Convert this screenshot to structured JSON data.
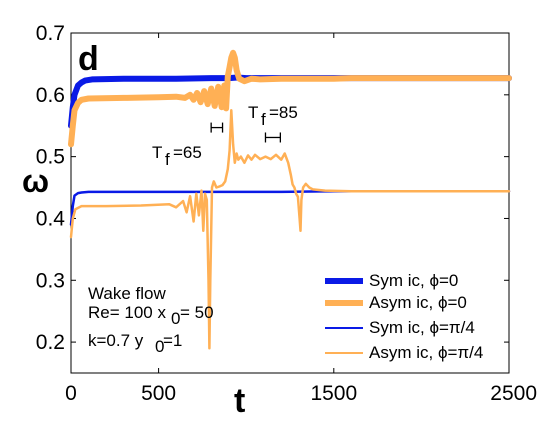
{
  "chart_data": {
    "type": "line",
    "panel_label": "d",
    "xlabel": "t",
    "ylabel": "ω",
    "xlim": [
      0,
      2500
    ],
    "ylim": [
      0.15,
      0.7
    ],
    "x_ticks": [
      0,
      500,
      1500,
      2500
    ],
    "y_ticks": [
      0.2,
      0.3,
      0.4,
      0.5,
      0.6,
      0.7
    ],
    "x_tick_labels": [
      "0",
      "500",
      "1500",
      "2500"
    ],
    "y_tick_labels": [
      "0.2",
      "0.3",
      "0.4",
      "0.5",
      "0.6",
      "0.7"
    ],
    "grid": false,
    "legend_position": "bottom-right",
    "annotation_lines": [
      "Wake flow",
      "Re= 100 x",
      "= 50",
      "k=0.7 y",
      "=1"
    ],
    "tf_labels": [
      {
        "main": "T",
        "sub": "f",
        "value": "=65"
      },
      {
        "main": "T",
        "sub": "f",
        "value": "=85"
      }
    ],
    "tf_bars": [
      {
        "x": [
          800,
          865
        ],
        "y": 0.547
      },
      {
        "x": [
          1110,
          1195
        ],
        "y": 0.531
      }
    ],
    "legend_prefix": "ϕ",
    "series": [
      {
        "name": "Sym ic, ",
        "phase": "=0",
        "color": "#0a1ae6",
        "weight": "thick",
        "points": [
          [
            0,
            0.55
          ],
          [
            10,
            0.58
          ],
          [
            20,
            0.6
          ],
          [
            40,
            0.615
          ],
          [
            60,
            0.62
          ],
          [
            80,
            0.623
          ],
          [
            120,
            0.625
          ],
          [
            300,
            0.626
          ],
          [
            600,
            0.626
          ],
          [
            800,
            0.627
          ],
          [
            900,
            0.627
          ],
          [
            950,
            0.628
          ],
          [
            1000,
            0.627
          ],
          [
            1100,
            0.627
          ],
          [
            1300,
            0.627
          ],
          [
            1500,
            0.627
          ],
          [
            1600,
            0.627
          ],
          [
            2500,
            0.627
          ]
        ]
      },
      {
        "name": "Asym ic, ",
        "phase": "=0",
        "color": "#ffb055",
        "weight": "thick",
        "points": [
          [
            0,
            0.52
          ],
          [
            10,
            0.55
          ],
          [
            20,
            0.575
          ],
          [
            40,
            0.587
          ],
          [
            60,
            0.592
          ],
          [
            100,
            0.594
          ],
          [
            300,
            0.595
          ],
          [
            500,
            0.596
          ],
          [
            600,
            0.597
          ],
          [
            650,
            0.595
          ],
          [
            680,
            0.6
          ],
          [
            700,
            0.592
          ],
          [
            720,
            0.603
          ],
          [
            740,
            0.588
          ],
          [
            760,
            0.606
          ],
          [
            780,
            0.585
          ],
          [
            800,
            0.61
          ],
          [
            820,
            0.582
          ],
          [
            840,
            0.613
          ],
          [
            860,
            0.58
          ],
          [
            875,
            0.615
          ],
          [
            885,
            0.578
          ],
          [
            895,
            0.63
          ],
          [
            905,
            0.645
          ],
          [
            915,
            0.66
          ],
          [
            925,
            0.668
          ],
          [
            935,
            0.66
          ],
          [
            945,
            0.64
          ],
          [
            960,
            0.626
          ],
          [
            990,
            0.622
          ],
          [
            1030,
            0.626
          ],
          [
            1080,
            0.625
          ],
          [
            1200,
            0.626
          ],
          [
            1500,
            0.626
          ],
          [
            1600,
            0.627
          ],
          [
            2500,
            0.627
          ]
        ]
      },
      {
        "name": "Sym ic, ",
        "phase": "=π/4",
        "color": "#0a1ae6",
        "weight": "thin",
        "points": [
          [
            0,
            0.39
          ],
          [
            10,
            0.42
          ],
          [
            20,
            0.437
          ],
          [
            40,
            0.441
          ],
          [
            60,
            0.442
          ],
          [
            100,
            0.443
          ],
          [
            300,
            0.443
          ],
          [
            600,
            0.443
          ],
          [
            900,
            0.443
          ],
          [
            1200,
            0.443
          ],
          [
            1500,
            0.444
          ],
          [
            2500,
            0.444
          ]
        ]
      },
      {
        "name": "Asym ic, ",
        "phase": "=π/4",
        "color": "#ffb055",
        "weight": "thin",
        "points": [
          [
            0,
            0.37
          ],
          [
            10,
            0.4
          ],
          [
            25,
            0.415
          ],
          [
            60,
            0.42
          ],
          [
            200,
            0.42
          ],
          [
            400,
            0.421
          ],
          [
            560,
            0.423
          ],
          [
            600,
            0.418
          ],
          [
            640,
            0.428
          ],
          [
            660,
            0.41
          ],
          [
            680,
            0.436
          ],
          [
            700,
            0.395
          ],
          [
            715,
            0.44
          ],
          [
            730,
            0.405
          ],
          [
            745,
            0.445
          ],
          [
            755,
            0.38
          ],
          [
            765,
            0.44
          ],
          [
            775,
            0.43
          ],
          [
            785,
            0.3
          ],
          [
            790,
            0.19
          ],
          [
            795,
            0.3
          ],
          [
            805,
            0.45
          ],
          [
            815,
            0.46
          ],
          [
            830,
            0.45
          ],
          [
            850,
            0.452
          ],
          [
            865,
            0.454
          ],
          [
            880,
            0.46
          ],
          [
            895,
            0.48
          ],
          [
            905,
            0.51
          ],
          [
            915,
            0.575
          ],
          [
            925,
            0.52
          ],
          [
            935,
            0.49
          ],
          [
            945,
            0.505
          ],
          [
            955,
            0.495
          ],
          [
            970,
            0.5
          ],
          [
            990,
            0.49
          ],
          [
            1010,
            0.502
          ],
          [
            1030,
            0.495
          ],
          [
            1050,
            0.503
          ],
          [
            1080,
            0.496
          ],
          [
            1110,
            0.5
          ],
          [
            1140,
            0.496
          ],
          [
            1170,
            0.503
          ],
          [
            1200,
            0.495
          ],
          [
            1220,
            0.505
          ],
          [
            1240,
            0.49
          ],
          [
            1255,
            0.47
          ],
          [
            1265,
            0.455
          ],
          [
            1275,
            0.45
          ],
          [
            1285,
            0.44
          ],
          [
            1295,
            0.435
          ],
          [
            1305,
            0.4
          ],
          [
            1310,
            0.38
          ],
          [
            1315,
            0.43
          ],
          [
            1325,
            0.45
          ],
          [
            1340,
            0.456
          ],
          [
            1360,
            0.45
          ],
          [
            1380,
            0.447
          ],
          [
            1450,
            0.445
          ],
          [
            1600,
            0.444
          ],
          [
            2500,
            0.444
          ]
        ]
      }
    ]
  }
}
